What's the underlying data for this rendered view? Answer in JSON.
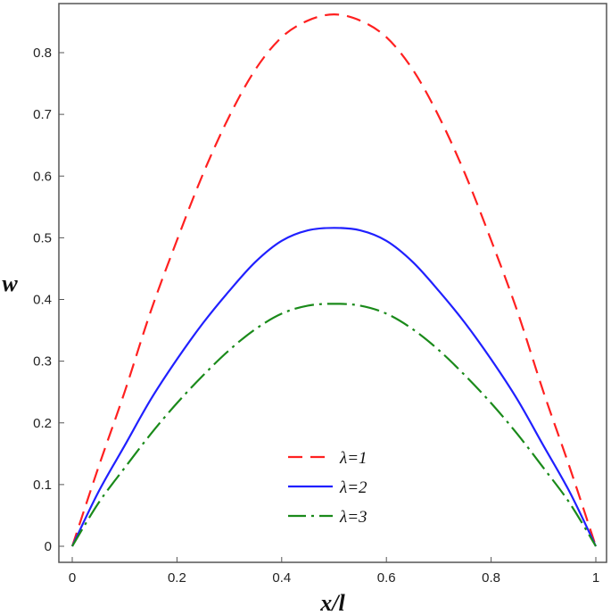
{
  "chart_data": {
    "type": "line",
    "title": "",
    "xlabel": "x/l",
    "ylabel": "w",
    "xlim": [
      0,
      1
    ],
    "ylim": [
      0,
      0.86
    ],
    "grid": false,
    "legend_position": "bottom-center",
    "x_ticks": [
      "0",
      "0.2",
      "0.4",
      "0.6",
      "0.8",
      "1"
    ],
    "y_ticks": [
      "0",
      "0.1",
      "0.2",
      "0.3",
      "0.4",
      "0.5",
      "0.6",
      "0.7",
      "0.8"
    ],
    "x": [
      0,
      0.05,
      0.1,
      0.15,
      0.2,
      0.25,
      0.3,
      0.35,
      0.4,
      0.45,
      0.5,
      0.55,
      0.6,
      0.65,
      0.7,
      0.75,
      0.8,
      0.85,
      0.9,
      0.95,
      1
    ],
    "series": [
      {
        "name": "λ=1",
        "color": "#ff2020",
        "dash": "dashed",
        "values": [
          0,
          0.128,
          0.25,
          0.381,
          0.496,
          0.604,
          0.697,
          0.773,
          0.825,
          0.852,
          0.862,
          0.852,
          0.825,
          0.773,
          0.697,
          0.604,
          0.496,
          0.381,
          0.25,
          0.128,
          0
        ]
      },
      {
        "name": "λ=2",
        "color": "#2020ff",
        "dash": "solid",
        "values": [
          0,
          0.088,
          0.163,
          0.238,
          0.303,
          0.362,
          0.414,
          0.461,
          0.495,
          0.512,
          0.516,
          0.512,
          0.495,
          0.461,
          0.414,
          0.362,
          0.303,
          0.238,
          0.163,
          0.088,
          0
        ]
      },
      {
        "name": "λ=3",
        "color": "#1a8a1a",
        "dash": "dash-dot",
        "values": [
          0,
          0.07,
          0.127,
          0.182,
          0.232,
          0.277,
          0.318,
          0.352,
          0.377,
          0.39,
          0.393,
          0.39,
          0.377,
          0.352,
          0.318,
          0.277,
          0.232,
          0.182,
          0.127,
          0.07,
          0
        ]
      }
    ]
  }
}
